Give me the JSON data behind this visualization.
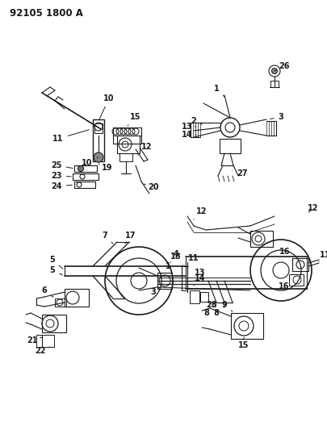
{
  "title": "92105 1800 A",
  "bg_color": "#ffffff",
  "lc": "#1a1a1a",
  "fig_w": 4.05,
  "fig_h": 5.33,
  "dpi": 100,
  "note_fs": 7.0,
  "title_fs": 8.5
}
